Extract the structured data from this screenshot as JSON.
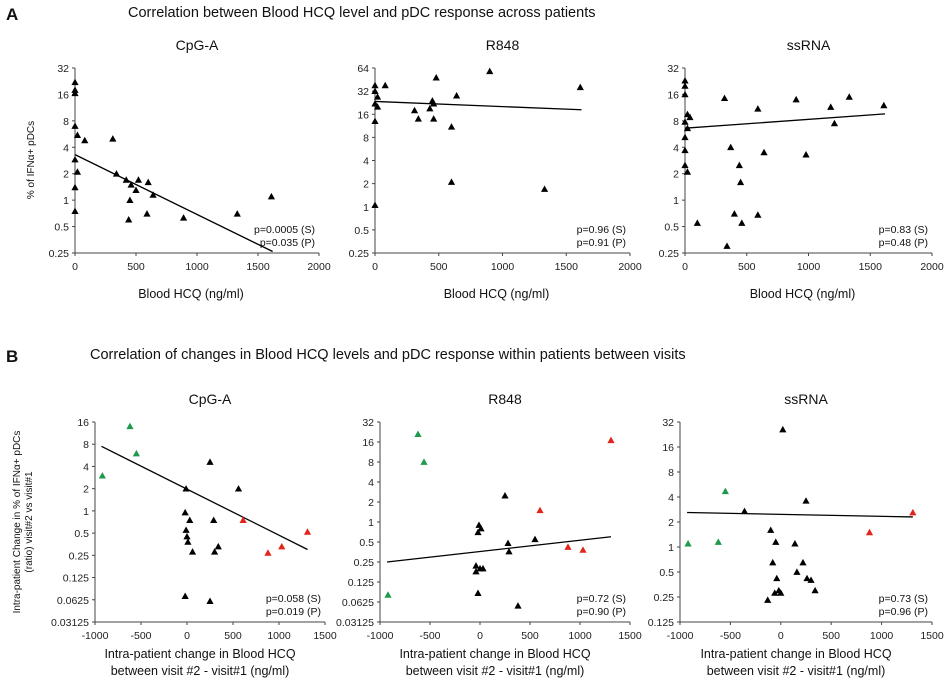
{
  "sections": [
    {
      "letter": "A",
      "title": "Correlation between Blood HCQ level and pDC response across patients"
    },
    {
      "letter": "B",
      "title": "Correlation of changes in Blood HCQ levels and pDC response within patients between visits"
    }
  ],
  "colors": {
    "black": "#000000",
    "green": "#1e9a4b",
    "red": "#e3241b"
  },
  "chart_data": [
    {
      "id": "A1",
      "type": "scatter",
      "title": "CpG-A",
      "yscale": "log2",
      "xlabel": "Blood HCQ (ng/ml)",
      "ylabel": [
        "% of IFNα+ pDCs"
      ],
      "xlim": [
        0,
        2000
      ],
      "xticks": [
        "0",
        "500",
        "1000",
        "1500",
        "2000"
      ],
      "ylim": [
        0.25,
        32
      ],
      "yticks": [
        "0.25",
        "0.5",
        "1",
        "2",
        "4",
        "8",
        "16",
        "32"
      ],
      "points": [
        {
          "x": 0,
          "y": 22,
          "c": "black"
        },
        {
          "x": 0,
          "y": 18,
          "c": "black"
        },
        {
          "x": 0,
          "y": 16.5,
          "c": "black"
        },
        {
          "x": 0,
          "y": 7,
          "c": "black"
        },
        {
          "x": 20,
          "y": 5.5,
          "c": "black"
        },
        {
          "x": 80,
          "y": 4.8,
          "c": "black"
        },
        {
          "x": 0,
          "y": 2.9,
          "c": "black"
        },
        {
          "x": 20,
          "y": 2.1,
          "c": "black"
        },
        {
          "x": 0,
          "y": 1.4,
          "c": "black"
        },
        {
          "x": 0,
          "y": 0.75,
          "c": "black"
        },
        {
          "x": 310,
          "y": 5.0,
          "c": "black"
        },
        {
          "x": 340,
          "y": 2.0,
          "c": "black"
        },
        {
          "x": 420,
          "y": 1.7,
          "c": "black"
        },
        {
          "x": 460,
          "y": 1.5,
          "c": "black"
        },
        {
          "x": 520,
          "y": 1.7,
          "c": "black"
        },
        {
          "x": 500,
          "y": 1.3,
          "c": "black"
        },
        {
          "x": 450,
          "y": 1.0,
          "c": "black"
        },
        {
          "x": 440,
          "y": 0.6,
          "c": "black"
        },
        {
          "x": 600,
          "y": 1.6,
          "c": "black"
        },
        {
          "x": 640,
          "y": 1.15,
          "c": "black"
        },
        {
          "x": 590,
          "y": 0.7,
          "c": "black"
        },
        {
          "x": 890,
          "y": 0.63,
          "c": "black"
        },
        {
          "x": 1330,
          "y": 0.7,
          "c": "black"
        },
        {
          "x": 1610,
          "y": 1.1,
          "c": "black"
        }
      ],
      "fit": [
        [
          0,
          3.3
        ],
        [
          1620,
          0.26
        ]
      ],
      "pvalues": [
        "p=0.0005 (S)",
        "p=0.035 (P)"
      ]
    },
    {
      "id": "A2",
      "type": "scatter",
      "title": "R848",
      "yscale": "log2",
      "xlabel": "Blood HCQ (ng/ml)",
      "ylabel": [],
      "xlim": [
        0,
        2000
      ],
      "xticks": [
        "0",
        "500",
        "1000",
        "1500",
        "2000"
      ],
      "ylim": [
        0.25,
        64
      ],
      "yticks": [
        "0.25",
        "0.5",
        "1",
        "2",
        "4",
        "8",
        "16",
        "32",
        "64"
      ],
      "points": [
        {
          "x": 0,
          "y": 38,
          "c": "black"
        },
        {
          "x": 0,
          "y": 32,
          "c": "black"
        },
        {
          "x": 20,
          "y": 27,
          "c": "black"
        },
        {
          "x": 0,
          "y": 22,
          "c": "black"
        },
        {
          "x": 20,
          "y": 20,
          "c": "black"
        },
        {
          "x": 0,
          "y": 13,
          "c": "black"
        },
        {
          "x": 0,
          "y": 1.05,
          "c": "black"
        },
        {
          "x": 80,
          "y": 38,
          "c": "black"
        },
        {
          "x": 310,
          "y": 18,
          "c": "black"
        },
        {
          "x": 340,
          "y": 14,
          "c": "black"
        },
        {
          "x": 430,
          "y": 19,
          "c": "black"
        },
        {
          "x": 450,
          "y": 24,
          "c": "black"
        },
        {
          "x": 460,
          "y": 22,
          "c": "black"
        },
        {
          "x": 480,
          "y": 48,
          "c": "black"
        },
        {
          "x": 460,
          "y": 14,
          "c": "black"
        },
        {
          "x": 600,
          "y": 11,
          "c": "black"
        },
        {
          "x": 640,
          "y": 28,
          "c": "black"
        },
        {
          "x": 600,
          "y": 2.1,
          "c": "black"
        },
        {
          "x": 900,
          "y": 58,
          "c": "black"
        },
        {
          "x": 1330,
          "y": 1.7,
          "c": "black"
        },
        {
          "x": 1610,
          "y": 36,
          "c": "black"
        }
      ],
      "fit": [
        [
          0,
          23.5
        ],
        [
          1620,
          18.3
        ]
      ],
      "pvalues": [
        "p=0.96 (S)",
        "p=0.91 (P)"
      ]
    },
    {
      "id": "A3",
      "type": "scatter",
      "title": "ssRNA",
      "yscale": "log2",
      "xlabel": "Blood HCQ (ng/ml)",
      "ylabel": [],
      "xlim": [
        0,
        2000
      ],
      "xticks": [
        "0",
        "500",
        "1000",
        "1500",
        "2000"
      ],
      "ylim": [
        0.25,
        32
      ],
      "yticks": [
        "0.25",
        "0.5",
        "1",
        "2",
        "4",
        "8",
        "16",
        "32"
      ],
      "points": [
        {
          "x": 0,
          "y": 23,
          "c": "black"
        },
        {
          "x": 0,
          "y": 20,
          "c": "black"
        },
        {
          "x": 0,
          "y": 16,
          "c": "black"
        },
        {
          "x": 20,
          "y": 9.5,
          "c": "black"
        },
        {
          "x": 40,
          "y": 8.8,
          "c": "black"
        },
        {
          "x": 0,
          "y": 7.8,
          "c": "black"
        },
        {
          "x": 20,
          "y": 6.6,
          "c": "black"
        },
        {
          "x": 0,
          "y": 5.2,
          "c": "black"
        },
        {
          "x": 0,
          "y": 3.7,
          "c": "black"
        },
        {
          "x": 0,
          "y": 2.5,
          "c": "black"
        },
        {
          "x": 20,
          "y": 2.1,
          "c": "black"
        },
        {
          "x": 100,
          "y": 0.55,
          "c": "black"
        },
        {
          "x": 320,
          "y": 14.5,
          "c": "black"
        },
        {
          "x": 370,
          "y": 4.0,
          "c": "black"
        },
        {
          "x": 440,
          "y": 2.5,
          "c": "black"
        },
        {
          "x": 450,
          "y": 1.6,
          "c": "black"
        },
        {
          "x": 400,
          "y": 0.7,
          "c": "black"
        },
        {
          "x": 460,
          "y": 0.55,
          "c": "black"
        },
        {
          "x": 340,
          "y": 0.3,
          "c": "black"
        },
        {
          "x": 590,
          "y": 11,
          "c": "black"
        },
        {
          "x": 640,
          "y": 3.5,
          "c": "black"
        },
        {
          "x": 590,
          "y": 0.68,
          "c": "black"
        },
        {
          "x": 900,
          "y": 14,
          "c": "black"
        },
        {
          "x": 980,
          "y": 3.3,
          "c": "black"
        },
        {
          "x": 1180,
          "y": 11.5,
          "c": "black"
        },
        {
          "x": 1210,
          "y": 7.5,
          "c": "black"
        },
        {
          "x": 1330,
          "y": 15,
          "c": "black"
        },
        {
          "x": 1610,
          "y": 12,
          "c": "black"
        }
      ],
      "fit": [
        [
          0,
          6.6
        ],
        [
          1620,
          9.6
        ]
      ],
      "pvalues": [
        "p=0.83 (S)",
        "p=0.48 (P)"
      ]
    },
    {
      "id": "B1",
      "type": "scatter",
      "title": "CpG-A",
      "yscale": "log2",
      "xlabel": "Intra-patient change in Blood HCQ between visit #2 - visit#1  (ng/ml)",
      "xlabel_lines": [
        "Intra-patient change in Blood HCQ",
        "between visit #2 - visit#1  (ng/ml)"
      ],
      "ylabel": [
        "Intra-patient Change in % of IFNα+ pDCs",
        "(ratio) visit#2 vs visit#1"
      ],
      "xlim": [
        -1000,
        1500
      ],
      "xticks": [
        "-1000",
        "-500",
        "0",
        "500",
        "1000",
        "1500"
      ],
      "ylim": [
        0.03125,
        16
      ],
      "yticks": [
        "0.03125",
        "0.0625",
        "0.125",
        "0.25",
        "0.5",
        "1",
        "2",
        "4",
        "8",
        "16"
      ],
      "points": [
        {
          "x": -920,
          "y": 3.0,
          "c": "green"
        },
        {
          "x": -620,
          "y": 14,
          "c": "green"
        },
        {
          "x": -550,
          "y": 6.0,
          "c": "green"
        },
        {
          "x": -10,
          "y": 2.0,
          "c": "black"
        },
        {
          "x": -20,
          "y": 0.95,
          "c": "black"
        },
        {
          "x": 30,
          "y": 0.75,
          "c": "black"
        },
        {
          "x": -10,
          "y": 0.55,
          "c": "black"
        },
        {
          "x": 0,
          "y": 0.45,
          "c": "black"
        },
        {
          "x": 10,
          "y": 0.38,
          "c": "black"
        },
        {
          "x": 60,
          "y": 0.28,
          "c": "black"
        },
        {
          "x": -20,
          "y": 0.07,
          "c": "black"
        },
        {
          "x": 250,
          "y": 4.6,
          "c": "black"
        },
        {
          "x": 290,
          "y": 0.75,
          "c": "black"
        },
        {
          "x": 300,
          "y": 0.28,
          "c": "black"
        },
        {
          "x": 340,
          "y": 0.33,
          "c": "black"
        },
        {
          "x": 250,
          "y": 0.06,
          "c": "black"
        },
        {
          "x": 560,
          "y": 2.0,
          "c": "black"
        },
        {
          "x": 610,
          "y": 0.75,
          "c": "red"
        },
        {
          "x": 880,
          "y": 0.27,
          "c": "red"
        },
        {
          "x": 1030,
          "y": 0.33,
          "c": "red"
        },
        {
          "x": 1310,
          "y": 0.52,
          "c": "red"
        }
      ],
      "fit": [
        [
          -930,
          7.5
        ],
        [
          1310,
          0.3
        ]
      ],
      "pvalues": [
        "p=0.058 (S)",
        "p=0.019 (P)"
      ]
    },
    {
      "id": "B2",
      "type": "scatter",
      "title": "R848",
      "yscale": "log2",
      "xlabel": "Intra-patient change in Blood HCQ between visit #2 - visit#1  (ng/ml)",
      "xlabel_lines": [
        "Intra-patient change in Blood HCQ",
        "between visit #2 - visit#1  (ng/ml)"
      ],
      "ylabel": [],
      "xlim": [
        -1000,
        1500
      ],
      "xticks": [
        "-1000",
        "-500",
        "0",
        "500",
        "1000",
        "1500"
      ],
      "ylim": [
        0.03125,
        32
      ],
      "yticks": [
        "0.03125",
        "0.0625",
        "0.125",
        "0.25",
        "0.5",
        "1",
        "2",
        "4",
        "8",
        "16",
        "32"
      ],
      "points": [
        {
          "x": -920,
          "y": 0.08,
          "c": "green"
        },
        {
          "x": -620,
          "y": 21,
          "c": "green"
        },
        {
          "x": -560,
          "y": 8.0,
          "c": "green"
        },
        {
          "x": -10,
          "y": 0.9,
          "c": "black"
        },
        {
          "x": 10,
          "y": 0.8,
          "c": "black"
        },
        {
          "x": -20,
          "y": 0.7,
          "c": "black"
        },
        {
          "x": -40,
          "y": 0.22,
          "c": "black"
        },
        {
          "x": 0,
          "y": 0.2,
          "c": "black"
        },
        {
          "x": 30,
          "y": 0.2,
          "c": "black"
        },
        {
          "x": -40,
          "y": 0.18,
          "c": "black"
        },
        {
          "x": -20,
          "y": 0.085,
          "c": "black"
        },
        {
          "x": 250,
          "y": 2.5,
          "c": "black"
        },
        {
          "x": 280,
          "y": 0.48,
          "c": "black"
        },
        {
          "x": 290,
          "y": 0.36,
          "c": "black"
        },
        {
          "x": 380,
          "y": 0.055,
          "c": "black"
        },
        {
          "x": 550,
          "y": 0.55,
          "c": "black"
        },
        {
          "x": 600,
          "y": 1.5,
          "c": "red"
        },
        {
          "x": 880,
          "y": 0.42,
          "c": "red"
        },
        {
          "x": 1030,
          "y": 0.38,
          "c": "red"
        },
        {
          "x": 1310,
          "y": 17,
          "c": "red"
        }
      ],
      "fit": [
        [
          -930,
          0.25
        ],
        [
          1310,
          0.6
        ]
      ],
      "pvalues": [
        "p=0.72 (S)",
        "p=0.90 (P)"
      ]
    },
    {
      "id": "B3",
      "type": "scatter",
      "title": "ssRNA",
      "yscale": "log2",
      "xlabel": "Intra-patient change in Blood HCQ between visit #2 - visit#1  (ng/ml)",
      "xlabel_lines": [
        "Intra-patient change in Blood HCQ",
        "between visit #2 - visit#1  (ng/ml)"
      ],
      "ylabel": [],
      "xlim": [
        -1000,
        1500
      ],
      "xticks": [
        "-1000",
        "-500",
        "0",
        "500",
        "1000",
        "1500"
      ],
      "ylim": [
        0.125,
        32
      ],
      "yticks": [
        "0.125",
        "0.25",
        "0.5",
        "1",
        "2",
        "4",
        "8",
        "16",
        "32"
      ],
      "points": [
        {
          "x": -920,
          "y": 1.1,
          "c": "green"
        },
        {
          "x": -620,
          "y": 1.15,
          "c": "green"
        },
        {
          "x": -550,
          "y": 4.7,
          "c": "green"
        },
        {
          "x": -360,
          "y": 2.7,
          "c": "black"
        },
        {
          "x": 20,
          "y": 26,
          "c": "black"
        },
        {
          "x": -100,
          "y": 1.6,
          "c": "black"
        },
        {
          "x": -50,
          "y": 1.15,
          "c": "black"
        },
        {
          "x": -80,
          "y": 0.65,
          "c": "black"
        },
        {
          "x": -40,
          "y": 0.42,
          "c": "black"
        },
        {
          "x": -20,
          "y": 0.3,
          "c": "black"
        },
        {
          "x": -60,
          "y": 0.28,
          "c": "black"
        },
        {
          "x": -130,
          "y": 0.23,
          "c": "black"
        },
        {
          "x": 0,
          "y": 0.28,
          "c": "black"
        },
        {
          "x": 140,
          "y": 1.1,
          "c": "black"
        },
        {
          "x": 160,
          "y": 0.5,
          "c": "black"
        },
        {
          "x": 220,
          "y": 0.65,
          "c": "black"
        },
        {
          "x": 250,
          "y": 3.6,
          "c": "black"
        },
        {
          "x": 260,
          "y": 0.42,
          "c": "black"
        },
        {
          "x": 300,
          "y": 0.4,
          "c": "black"
        },
        {
          "x": 340,
          "y": 0.3,
          "c": "black"
        },
        {
          "x": 880,
          "y": 1.5,
          "c": "red"
        },
        {
          "x": 1310,
          "y": 2.6,
          "c": "red"
        }
      ],
      "fit": [
        [
          -930,
          2.6
        ],
        [
          1310,
          2.3
        ]
      ],
      "pvalues": [
        "p=0.73 (S)",
        "p=0.96 (P)"
      ]
    }
  ]
}
